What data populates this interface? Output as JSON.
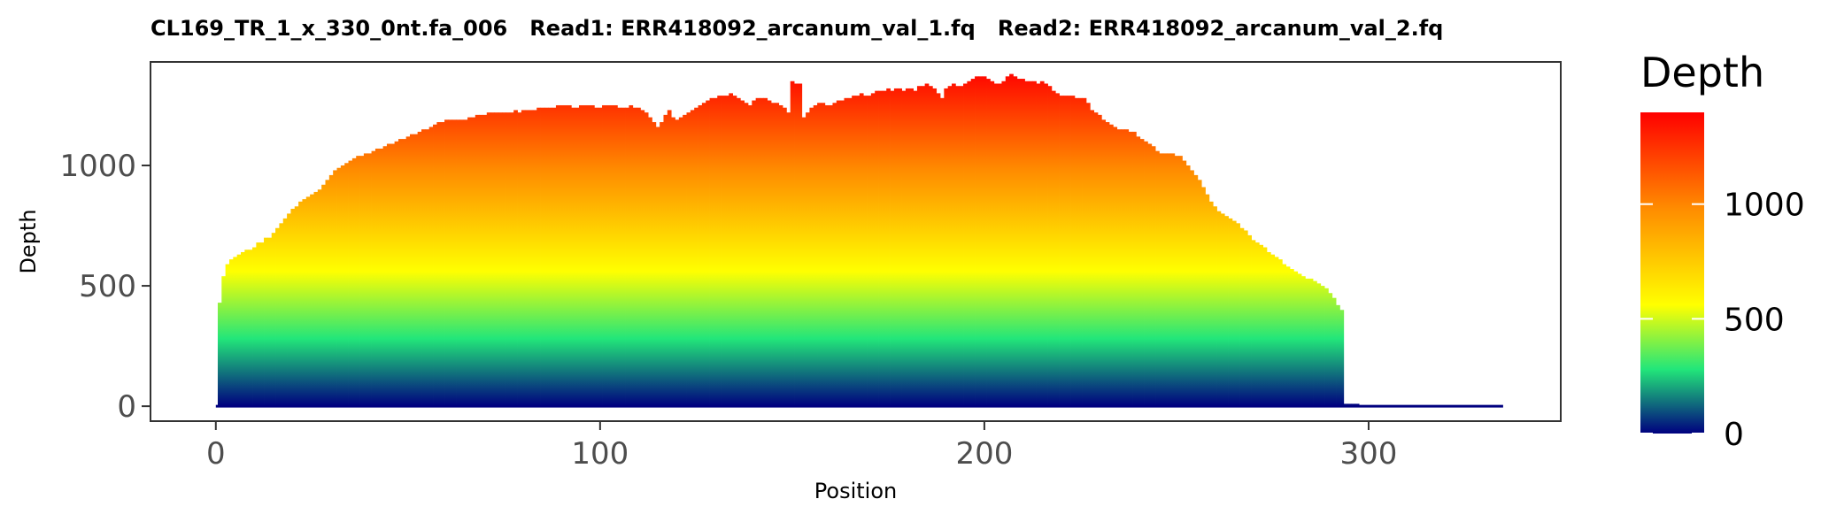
{
  "chart_data": {
    "type": "bar",
    "title": "CL169_TR_1_x_330_0nt.fa_006   Read1: ERR418092_arcanum_val_1.fq   Read2: ERR418092_arcanum_val_2.fq",
    "xlabel": "Position",
    "ylabel": "Depth",
    "xlim": [
      -17,
      350
    ],
    "ylim": [
      -62,
      1430
    ],
    "x_ticks": [
      0,
      100,
      200,
      300
    ],
    "y_ticks": [
      0,
      500,
      1000
    ],
    "grid": false,
    "fill_scale": "Depth (gradient)",
    "legend": {
      "title": "Depth",
      "placement": "right",
      "ticks": [
        0,
        500,
        1000
      ],
      "min": 0,
      "max": 1400,
      "colors": [
        "#00007f",
        "#22e67a",
        "#ffff00",
        "#ff8c00",
        "#ff0000"
      ],
      "color_stops": [
        0,
        0.2,
        0.4,
        0.7,
        1
      ]
    },
    "position_start": 1,
    "values": [
      430,
      540,
      590,
      610,
      620,
      630,
      640,
      650,
      650,
      660,
      680,
      680,
      700,
      700,
      720,
      740,
      760,
      780,
      800,
      820,
      830,
      850,
      860,
      870,
      880,
      890,
      900,
      920,
      940,
      960,
      980,
      990,
      1000,
      1010,
      1020,
      1030,
      1040,
      1040,
      1050,
      1050,
      1060,
      1070,
      1070,
      1080,
      1090,
      1090,
      1100,
      1110,
      1110,
      1120,
      1130,
      1130,
      1140,
      1150,
      1150,
      1160,
      1170,
      1180,
      1180,
      1190,
      1190,
      1190,
      1190,
      1190,
      1190,
      1200,
      1200,
      1210,
      1210,
      1210,
      1220,
      1220,
      1220,
      1220,
      1220,
      1220,
      1220,
      1230,
      1220,
      1230,
      1230,
      1230,
      1230,
      1240,
      1240,
      1240,
      1240,
      1240,
      1250,
      1250,
      1250,
      1250,
      1240,
      1240,
      1250,
      1250,
      1250,
      1250,
      1240,
      1240,
      1250,
      1250,
      1250,
      1250,
      1240,
      1240,
      1240,
      1250,
      1240,
      1240,
      1230,
      1220,
      1200,
      1180,
      1160,
      1180,
      1210,
      1230,
      1200,
      1190,
      1200,
      1210,
      1220,
      1230,
      1240,
      1250,
      1260,
      1270,
      1280,
      1280,
      1290,
      1290,
      1290,
      1300,
      1290,
      1280,
      1270,
      1260,
      1250,
      1270,
      1280,
      1280,
      1280,
      1270,
      1260,
      1260,
      1250,
      1240,
      1220,
      1350,
      1340,
      1340,
      1200,
      1220,
      1240,
      1250,
      1260,
      1260,
      1250,
      1250,
      1260,
      1270,
      1270,
      1280,
      1280,
      1290,
      1290,
      1300,
      1290,
      1290,
      1300,
      1310,
      1310,
      1310,
      1320,
      1310,
      1320,
      1320,
      1310,
      1320,
      1320,
      1310,
      1330,
      1330,
      1340,
      1330,
      1320,
      1300,
      1280,
      1320,
      1330,
      1340,
      1330,
      1330,
      1340,
      1350,
      1360,
      1370,
      1370,
      1370,
      1360,
      1350,
      1340,
      1340,
      1350,
      1370,
      1380,
      1370,
      1360,
      1360,
      1350,
      1350,
      1350,
      1340,
      1350,
      1340,
      1330,
      1310,
      1300,
      1290,
      1290,
      1290,
      1290,
      1280,
      1280,
      1280,
      1260,
      1230,
      1220,
      1210,
      1190,
      1180,
      1170,
      1160,
      1150,
      1150,
      1150,
      1140,
      1140,
      1120,
      1110,
      1100,
      1090,
      1080,
      1060,
      1050,
      1050,
      1050,
      1050,
      1040,
      1040,
      1020,
      1000,
      980,
      960,
      940,
      910,
      880,
      850,
      830,
      810,
      800,
      790,
      780,
      770,
      760,
      740,
      730,
      710,
      690,
      680,
      670,
      660,
      640,
      630,
      620,
      610,
      590,
      580,
      570,
      560,
      550,
      540,
      530,
      530,
      520,
      510,
      500,
      490,
      470,
      450,
      420,
      400,
      10,
      10,
      10,
      10
    ],
    "x_axis_end": 335
  }
}
